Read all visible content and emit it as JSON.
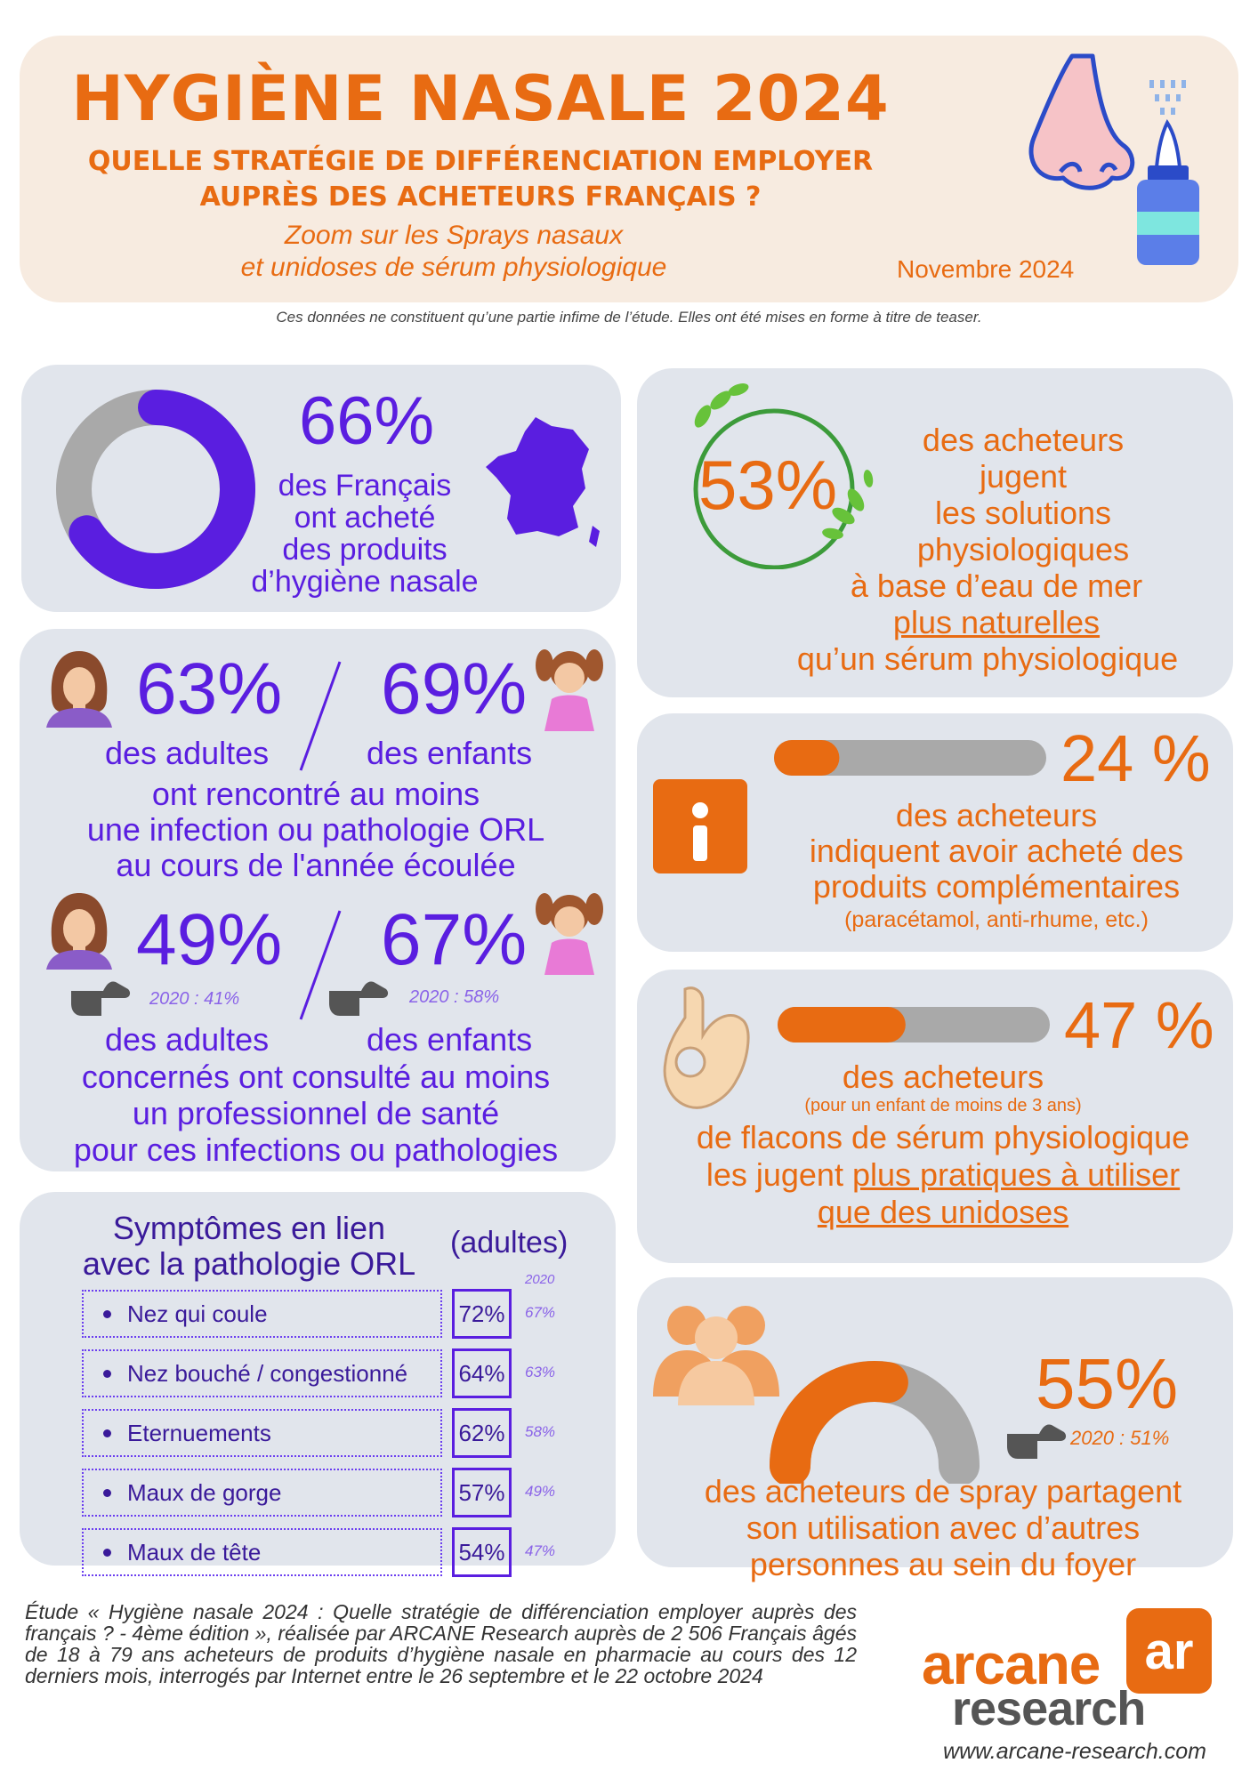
{
  "header": {
    "title": "HYGIÈNE NASALE 2024",
    "subtitle_line1": "QUELLE STRATÉGIE DE DIFFÉRENCIATION EMPLOYER",
    "subtitle_line2": "AUPRÈS DES ACHETEURS FRANÇAIS ?",
    "zoom_line1": "Zoom sur les Sprays nasaux",
    "zoom_line2": "et unidoses de sérum physiologique",
    "date": "Novembre 2024"
  },
  "disclaimer": "Ces données ne constituent qu’une partie infime de l’étude. Elles ont été mises en forme à titre de teaser.",
  "stat_french": {
    "value": "66%",
    "fraction": 0.66,
    "line1": "des Français",
    "line2": "ont acheté",
    "line3": "des produits",
    "line4": "d’hygiène nasale"
  },
  "stat_natural": {
    "value": "53%",
    "line1": "des acheteurs",
    "line2": "jugent",
    "line3": "les solutions",
    "line4": "physiologiques",
    "line5": "à base d’eau de mer",
    "line6": "plus naturelles",
    "line7": "qu’un sérum physiologique"
  },
  "infections": {
    "adults_value": "63%",
    "children_value": "69%",
    "adults_label": "des adultes",
    "children_label": "des enfants",
    "line1": "ont rencontré au moins",
    "line2": "une infection ou pathologie ORL",
    "line3": "au cours de l'année écoulée"
  },
  "consultation": {
    "adults_value": "49%",
    "children_value": "67%",
    "adults_prev": "2020 : 41%",
    "children_prev": "2020 : 58%",
    "adults_label": "des adultes",
    "children_label": "des enfants",
    "line1": "concernés ont consulté au moins",
    "line2": "un professionnel de santé",
    "line3": "pour ces infections ou pathologies"
  },
  "complementary": {
    "value": "24 %",
    "fraction": 0.24,
    "line1": "des acheteurs",
    "line2": "indiquent avoir acheté des",
    "line3": "produits complémentaires",
    "line4": "(paracétamol, anti-rhume, etc.)"
  },
  "practical": {
    "value": "47 %",
    "fraction": 0.47,
    "line1": "des acheteurs",
    "line2": "(pour un enfant de moins de 3 ans)",
    "line3": "de flacons de sérum physiologique",
    "line4a": "les jugent ",
    "line4b": "plus pratiques à utiliser",
    "line5": "que des unidoses"
  },
  "sharing": {
    "value": "55%",
    "fraction": 0.55,
    "prev": "2020 : 51%",
    "line1": "des acheteurs de spray partagent",
    "line2": "son utilisation avec d’autres",
    "line3": "personnes au sein du foyer"
  },
  "symptoms": {
    "title_line1": "Symptômes en lien",
    "title_line2": "avec la pathologie ORL",
    "qualifier": "(adultes)",
    "year_header": "2020",
    "rows": [
      {
        "label": "Nez qui coule",
        "value": "72%",
        "prev": "67%"
      },
      {
        "label": "Nez bouché / congestionné",
        "value": "64%",
        "prev": "63%"
      },
      {
        "label": "Eternuements",
        "value": "62%",
        "prev": "58%"
      },
      {
        "label": "Maux de gorge",
        "value": "57%",
        "prev": "49%"
      },
      {
        "label": "Maux de tête",
        "value": "54%",
        "prev": "47%"
      }
    ]
  },
  "footer": {
    "study_text": "Étude « Hygiène nasale 2024 : Quelle stratégie de différenciation employer auprès des français ? - 4ème édition », réalisée par ARCANE Research auprès de 2 506 Français âgés de 18 à 79 ans acheteurs de produits d’hygiène nasale en pharmacie au cours des 12 derniers mois, interrogés par Internet entre le 26 septembre et le 22 octobre 2024",
    "logo_word1": "arcane",
    "logo_word2": "research",
    "logo_mark": "ar",
    "website": "www.arcane-research.com"
  },
  "colors": {
    "orange": "#e86b12",
    "purple": "#5a1ee0",
    "panel": "#e1e5ec",
    "gray": "#a9a9a9"
  },
  "icons": [
    "nose-icon",
    "nasal-spray-icon",
    "france-map-icon",
    "leaf-wreath-icon",
    "woman-icon",
    "girl-icon",
    "pointing-hand-icon",
    "info-icon",
    "ok-hand-icon",
    "people-group-icon"
  ]
}
